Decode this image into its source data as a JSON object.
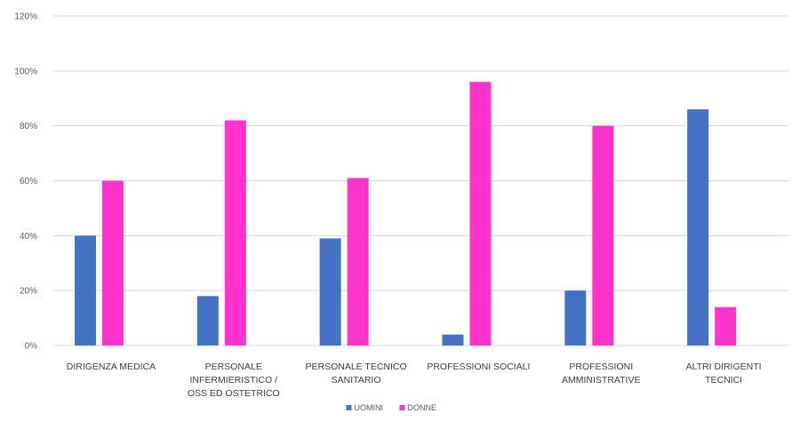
{
  "chart_data": {
    "type": "bar",
    "categories": [
      [
        "DIRIGENZA MEDICA"
      ],
      [
        "PERSONALE",
        "INFERMIERISTICO /",
        "OSS ED OSTETRICO"
      ],
      [
        "PERSONALE TECNICO",
        "SANITARIO"
      ],
      [
        "PROFESSIONI SOCIALI"
      ],
      [
        "PROFESSIONI",
        "AMMINISTRATIVE"
      ],
      [
        "ALTRI DIRIGENTI",
        "TECNICI"
      ]
    ],
    "series": [
      {
        "name": "UOMINI",
        "color": "#4472c4",
        "values": [
          40,
          18,
          39,
          4,
          20,
          86
        ]
      },
      {
        "name": "DONNE",
        "color": "#ff33cc",
        "values": [
          60,
          82,
          61,
          96,
          80,
          14
        ]
      }
    ],
    "y_ticks": [
      "0%",
      "20%",
      "40%",
      "60%",
      "80%",
      "100%",
      "120%"
    ],
    "ylim": [
      0,
      120
    ],
    "ystep": 20,
    "grid": true,
    "legend_position": "bottom-center",
    "title": "",
    "xlabel": "",
    "ylabel": ""
  }
}
